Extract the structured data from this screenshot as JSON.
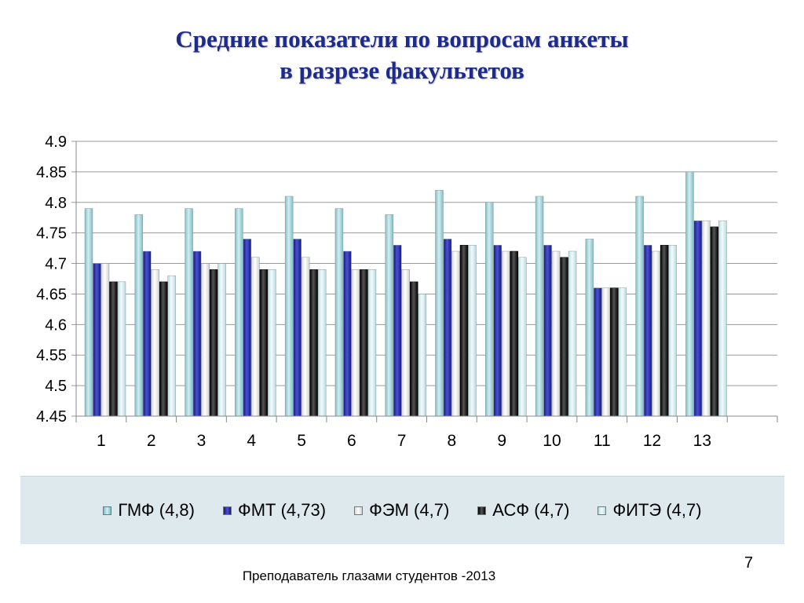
{
  "title_lines": [
    "Средние показатели по вопросам анкеты",
    "в разрезе факультетов"
  ],
  "page_number": "7",
  "footer": "Преподаватель глазами студентов -2013",
  "chart_data": {
    "type": "bar",
    "categories": [
      "1",
      "2",
      "3",
      "4",
      "5",
      "6",
      "7",
      "8",
      "9",
      "10",
      "11",
      "12",
      "13"
    ],
    "ylim": [
      4.45,
      4.9
    ],
    "yticks": [
      "4.45",
      "4.5",
      "4.55",
      "4.6",
      "4.65",
      "4.7",
      "4.75",
      "4.8",
      "4.85",
      "4.9"
    ],
    "grid": true,
    "legend_position": "bottom",
    "series": [
      {
        "name": "ГМФ (4,8)",
        "color": "#9fd3da",
        "values": [
          4.79,
          4.78,
          4.79,
          4.79,
          4.81,
          4.79,
          4.78,
          4.82,
          4.8,
          4.81,
          4.74,
          4.81,
          4.85
        ]
      },
      {
        "name": "ФМТ (4,73)",
        "color": "#2b2fa8",
        "values": [
          4.7,
          4.72,
          4.72,
          4.74,
          4.74,
          4.72,
          4.73,
          4.74,
          4.73,
          4.73,
          4.66,
          4.73,
          4.77
        ]
      },
      {
        "name": "ФЭМ (4,7)",
        "color": "#f4f4f4",
        "values": [
          4.7,
          4.69,
          4.7,
          4.71,
          4.71,
          4.69,
          4.69,
          4.72,
          4.72,
          4.72,
          4.66,
          4.72,
          4.77
        ]
      },
      {
        "name": "АСФ (4,7)",
        "color": "#111111",
        "values": [
          4.67,
          4.67,
          4.69,
          4.69,
          4.69,
          4.69,
          4.67,
          4.73,
          4.72,
          4.71,
          4.66,
          4.73,
          4.76
        ]
      },
      {
        "name": "ФИТЭ (4,7)",
        "color": "#d7eef0",
        "values": [
          4.67,
          4.68,
          4.7,
          4.69,
          4.69,
          4.69,
          4.65,
          4.73,
          4.71,
          4.72,
          4.66,
          4.73,
          4.77
        ]
      }
    ]
  }
}
